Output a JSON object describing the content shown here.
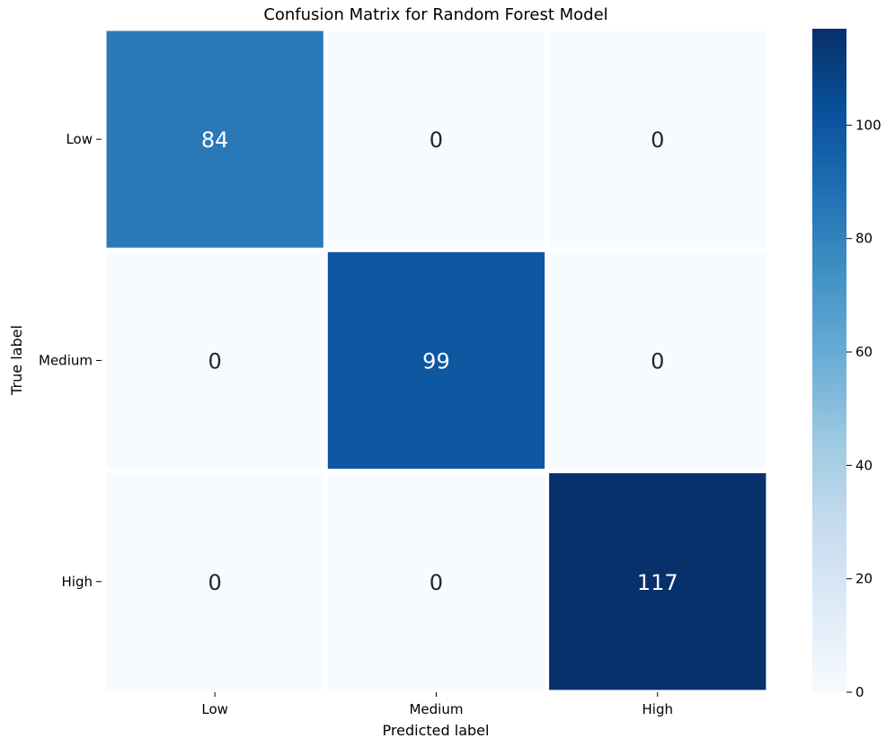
{
  "chart_data": {
    "type": "heatmap",
    "title": "Confusion Matrix for Random Forest Model",
    "xlabel": "Predicted label",
    "ylabel": "True label",
    "x_categories": [
      "Low",
      "Medium",
      "High"
    ],
    "y_categories": [
      "Low",
      "Medium",
      "High"
    ],
    "values": [
      [
        84,
        0,
        0
      ],
      [
        0,
        99,
        0
      ],
      [
        0,
        0,
        117
      ]
    ],
    "colorbar": {
      "min": 0,
      "max": 117,
      "ticks": [
        0,
        20,
        40,
        60,
        80,
        100
      ],
      "colormap": "Blues"
    }
  }
}
